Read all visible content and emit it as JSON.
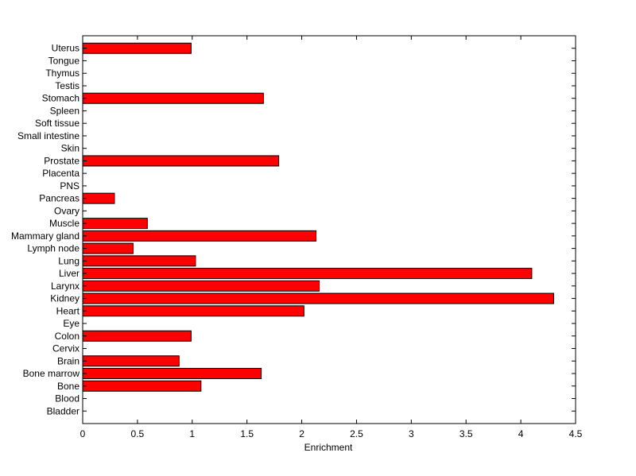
{
  "chart_data": {
    "type": "bar",
    "orientation": "horizontal",
    "xlabel": "Enrichment",
    "ylabel": "",
    "title": "",
    "xlim": [
      0,
      4.5
    ],
    "xticks": [
      "0",
      "0.5",
      "1",
      "1.5",
      "2",
      "2.5",
      "3",
      "3.5",
      "4",
      "4.5"
    ],
    "grid": false,
    "categories": [
      "Bladder",
      "Blood",
      "Bone",
      "Bone marrow",
      "Brain",
      "Cervix",
      "Colon",
      "Eye",
      "Heart",
      "Kidney",
      "Larynx",
      "Liver",
      "Lung",
      "Lymph node",
      "Mammary gland",
      "Muscle",
      "Ovary",
      "Pancreas",
      "PNS",
      "Placenta",
      "Prostate",
      "Skin",
      "Small intestine",
      "Soft tissue",
      "Spleen",
      "Stomach",
      "Testis",
      "Thymus",
      "Tongue",
      "Uterus"
    ],
    "values": [
      0,
      0,
      1.08,
      1.63,
      0.88,
      0,
      0.99,
      0,
      2.02,
      4.3,
      2.16,
      4.1,
      1.03,
      0.46,
      2.13,
      0.59,
      0,
      0.29,
      0,
      0,
      1.79,
      0,
      0,
      0,
      0,
      1.65,
      0,
      0,
      0,
      0.99
    ],
    "colors": {
      "bar_fill": "#ff0000",
      "bar_edge": "#000000",
      "axis": "#000000",
      "background": "#ffffff"
    }
  }
}
